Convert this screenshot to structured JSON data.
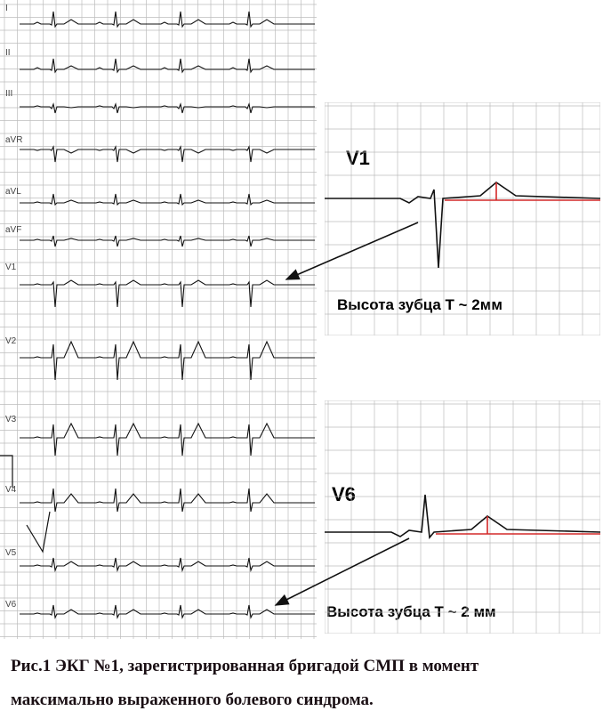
{
  "figure": {
    "leads": [
      "I",
      "II",
      "III",
      "aVR",
      "aVL",
      "aVF",
      "V1",
      "V2",
      "V3",
      "V4",
      "V5",
      "V6"
    ],
    "insets": [
      {
        "lead": "V1",
        "annotation": "Высота зубца Т ~ 2мм"
      },
      {
        "lead": "V6",
        "annotation": "Высота зубца Т ~ 2 мм"
      }
    ],
    "colors": {
      "trace": "#111111",
      "grid": "#bdbdbd",
      "marker": "#d42a2a"
    }
  },
  "caption": {
    "line1": "Рис.1 ЭКГ №1, зарегистрированная бригадой СМП в момент",
    "line2": "максимально выраженного болевого синдрома."
  }
}
